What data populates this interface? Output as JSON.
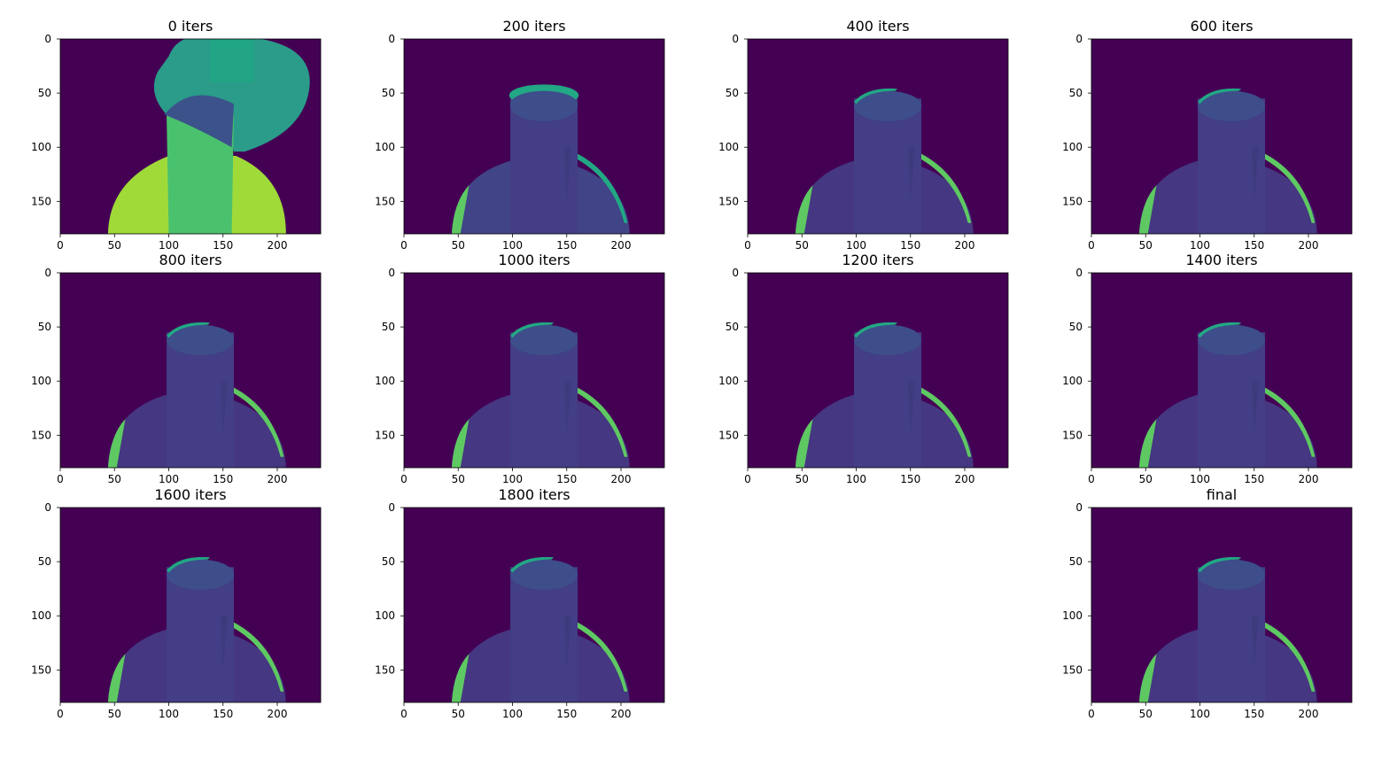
{
  "colors": {
    "background": "#440154",
    "cylinder_top": "#3d4e8a",
    "cylinder_body": "#433e85",
    "base": "#453781",
    "edge_green": "#5ec962",
    "edge_teal": "#22a884",
    "bright_yellow_green": "#a0da39",
    "mid_green": "#4ac16d",
    "teal": "#2a9c89"
  },
  "chart_data": {
    "type": "heatmap",
    "colormap": "viridis",
    "image_shape": [
      180,
      240
    ],
    "xlim": [
      0,
      240
    ],
    "ylim": [
      180,
      0
    ],
    "x_ticks": [
      0,
      50,
      100,
      150,
      200
    ],
    "y_ticks": [
      0,
      50,
      100,
      150
    ],
    "grid": false,
    "panels": [
      {
        "title": "0 iters",
        "state": "initial"
      },
      {
        "title": "200 iters",
        "state": "early"
      },
      {
        "title": "400 iters",
        "state": "converged"
      },
      {
        "title": "600 iters",
        "state": "converged"
      },
      {
        "title": "800 iters",
        "state": "converged"
      },
      {
        "title": "1000 iters",
        "state": "converged"
      },
      {
        "title": "1200 iters",
        "state": "converged"
      },
      {
        "title": "1400 iters",
        "state": "converged"
      },
      {
        "title": "1600 iters",
        "state": "converged"
      },
      {
        "title": "1800 iters",
        "state": "converged"
      },
      {
        "title": "final",
        "state": "converged"
      }
    ]
  }
}
